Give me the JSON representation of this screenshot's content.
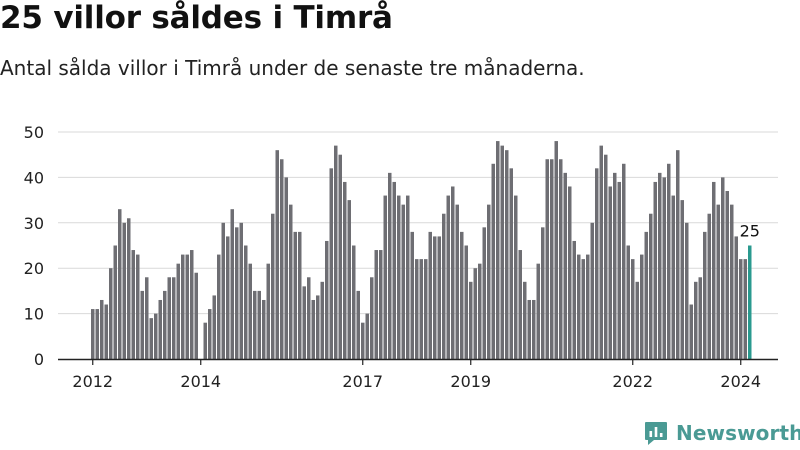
{
  "title": "25 villor såldes i Timrå",
  "subtitle": "Antal sålda villor i Timrå under de senaste tre månaderna.",
  "brand": "Newsworthy",
  "colors": {
    "bar": "#6e6e73",
    "highlight": "#2a9a8f",
    "grid": "#d9d9d9",
    "axis": "#222222",
    "brand": "#4a9a94"
  },
  "chart_data": {
    "type": "bar",
    "ylim": [
      0,
      50
    ],
    "yticks": [
      0,
      10,
      20,
      30,
      40,
      50
    ],
    "xticks": [
      "2012",
      "2014",
      "2017",
      "2019",
      "2022",
      "2024"
    ],
    "grid": true,
    "annotation": {
      "text": "25",
      "x": "2024-03"
    },
    "x": [
      "2012-01",
      "2012-02",
      "2012-03",
      "2012-04",
      "2012-05",
      "2012-06",
      "2012-07",
      "2012-08",
      "2012-09",
      "2012-10",
      "2012-11",
      "2012-12",
      "2013-01",
      "2013-02",
      "2013-03",
      "2013-04",
      "2013-05",
      "2013-06",
      "2013-07",
      "2013-08",
      "2013-09",
      "2013-10",
      "2013-11",
      "2013-12",
      "2014-01",
      "2014-02",
      "2014-03",
      "2014-04",
      "2014-05",
      "2014-06",
      "2014-07",
      "2014-08",
      "2014-09",
      "2014-10",
      "2014-11",
      "2014-12",
      "2015-01",
      "2015-02",
      "2015-03",
      "2015-04",
      "2015-05",
      "2015-06",
      "2015-07",
      "2015-08",
      "2015-09",
      "2015-10",
      "2015-11",
      "2015-12",
      "2016-01",
      "2016-02",
      "2016-03",
      "2016-04",
      "2016-05",
      "2016-06",
      "2016-07",
      "2016-08",
      "2016-09",
      "2016-10",
      "2016-11",
      "2016-12",
      "2017-01",
      "2017-02",
      "2017-03",
      "2017-04",
      "2017-05",
      "2017-06",
      "2017-07",
      "2017-08",
      "2017-09",
      "2017-10",
      "2017-11",
      "2017-12",
      "2018-01",
      "2018-02",
      "2018-03",
      "2018-04",
      "2018-05",
      "2018-06",
      "2018-07",
      "2018-08",
      "2018-09",
      "2018-10",
      "2018-11",
      "2018-12",
      "2019-01",
      "2019-02",
      "2019-03",
      "2019-04",
      "2019-05",
      "2019-06",
      "2019-07",
      "2019-08",
      "2019-09",
      "2019-10",
      "2019-11",
      "2019-12",
      "2020-01",
      "2020-02",
      "2020-03",
      "2020-04",
      "2020-05",
      "2020-06",
      "2020-07",
      "2020-08",
      "2020-09",
      "2020-10",
      "2020-11",
      "2020-12",
      "2021-01",
      "2021-02",
      "2021-03",
      "2021-04",
      "2021-05",
      "2021-06",
      "2021-07",
      "2021-08",
      "2021-09",
      "2021-10",
      "2021-11",
      "2021-12",
      "2022-01",
      "2022-02",
      "2022-03",
      "2022-04",
      "2022-05",
      "2022-06",
      "2022-07",
      "2022-08",
      "2022-09",
      "2022-10",
      "2022-11",
      "2022-12",
      "2023-01",
      "2023-02",
      "2023-03",
      "2023-04",
      "2023-05",
      "2023-06",
      "2023-07",
      "2023-08",
      "2023-09",
      "2023-10",
      "2023-11",
      "2023-12",
      "2024-01",
      "2024-02",
      "2024-03"
    ],
    "values": [
      11,
      11,
      13,
      12,
      20,
      25,
      33,
      30,
      31,
      24,
      23,
      15,
      18,
      9,
      10,
      13,
      15,
      18,
      18,
      21,
      23,
      23,
      24,
      19,
      null,
      8,
      11,
      14,
      23,
      30,
      27,
      33,
      29,
      30,
      25,
      21,
      15,
      15,
      13,
      21,
      32,
      46,
      44,
      40,
      34,
      28,
      28,
      16,
      18,
      13,
      14,
      17,
      26,
      42,
      47,
      45,
      39,
      35,
      25,
      15,
      8,
      10,
      18,
      24,
      24,
      36,
      41,
      39,
      36,
      34,
      36,
      28,
      22,
      22,
      22,
      28,
      27,
      27,
      32,
      36,
      38,
      34,
      28,
      25,
      17,
      20,
      21,
      29,
      34,
      43,
      48,
      47,
      46,
      42,
      36,
      24,
      17,
      13,
      13,
      21,
      29,
      44,
      44,
      48,
      44,
      41,
      38,
      26,
      23,
      22,
      23,
      30,
      42,
      47,
      45,
      38,
      41,
      39,
      43,
      25,
      22,
      17,
      23,
      28,
      32,
      39,
      41,
      40,
      43,
      36,
      46,
      35,
      30,
      12,
      17,
      18,
      28,
      32,
      39,
      34,
      40,
      37,
      34,
      27,
      22,
      22,
      25
    ]
  }
}
